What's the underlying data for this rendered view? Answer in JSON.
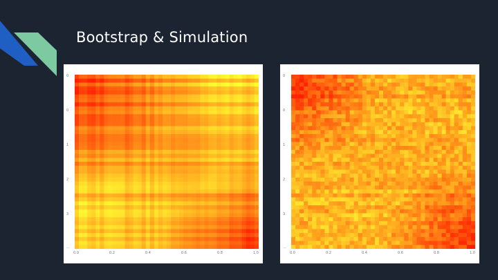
{
  "slide": {
    "title": "Bootstrap & Simulation"
  },
  "colors": {
    "background": "#1c2331",
    "accent_blue": "#1f5fc4",
    "accent_green": "#7dc9a2",
    "heat_low": "#ffff33",
    "heat_mid": "#ffa500",
    "heat_high": "#ff2a00"
  },
  "chart_data": [
    {
      "type": "heatmap",
      "title": "",
      "xlabel": "",
      "ylabel": "",
      "x_ticks": [
        "0.0",
        "0.2",
        "0.4",
        "0.6",
        "0.8",
        "1.0"
      ],
      "y_ticks": [
        "0",
        "0",
        "1",
        "2",
        "3",
        "..."
      ],
      "description_pattern": "red at top-left and bottom-right corners, yellow elsewhere, banded rows/columns"
    },
    {
      "type": "heatmap",
      "title": "",
      "xlabel": "",
      "ylabel": "",
      "x_ticks": [
        "0.0",
        "0.2",
        "0.4",
        "0.6",
        "0.8",
        "1.0"
      ],
      "y_ticks": [
        "0",
        "0",
        "1",
        "2",
        "3",
        "..."
      ],
      "description_pattern": "red at top-left and bottom-right corners, yellow along other diagonal, mottled texture"
    }
  ]
}
